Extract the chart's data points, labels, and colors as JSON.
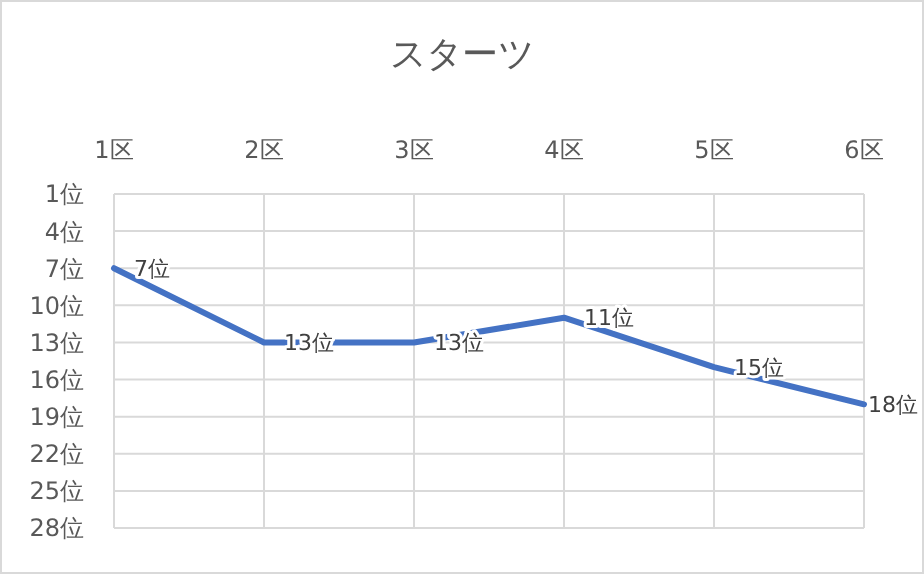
{
  "chart_data": {
    "type": "line",
    "title": "スターツ",
    "categories": [
      "1区",
      "2区",
      "3区",
      "4区",
      "5区",
      "6区"
    ],
    "series": [
      {
        "color": "#4472c4",
        "values": [
          7,
          13,
          13,
          11,
          15,
          18
        ],
        "value_labels": [
          "7位",
          "13位",
          "13位",
          "11位",
          "15位",
          "18位"
        ]
      }
    ],
    "ylim": [
      28,
      1
    ],
    "yticks": [
      {
        "value": 1,
        "label": "1位"
      },
      {
        "value": 4,
        "label": "4位"
      },
      {
        "value": 7,
        "label": "7位"
      },
      {
        "value": 10,
        "label": "10位"
      },
      {
        "value": 13,
        "label": "13位"
      },
      {
        "value": 16,
        "label": "16位"
      },
      {
        "value": 19,
        "label": "19位"
      },
      {
        "value": 22,
        "label": "22位"
      },
      {
        "value": 25,
        "label": "25位"
      },
      {
        "value": 28,
        "label": "28位"
      }
    ],
    "grid": true,
    "marker": "none",
    "line_style": "solid"
  }
}
